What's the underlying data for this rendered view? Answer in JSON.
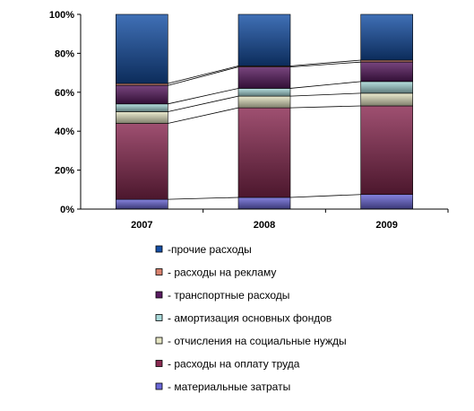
{
  "chart_data": {
    "type": "bar",
    "stacked": "percent",
    "categories": [
      "2007",
      "2008",
      "2009"
    ],
    "ylim": [
      0,
      100
    ],
    "y_ticks": [
      "0%",
      "20%",
      "40%",
      "60%",
      "80%",
      "100%"
    ],
    "grid": false,
    "legend_position": "bottom",
    "series": [
      {
        "name": "- материальные затраты",
        "color": "#6b68d8",
        "values": [
          5,
          6,
          7.5
        ]
      },
      {
        "name": " - расходы на оплату труда",
        "color": "#8a2a52",
        "values": [
          39,
          46,
          45.5
        ]
      },
      {
        "name": " - отчисления на социальные нужды",
        "color": "#e6e6c4",
        "values": [
          6,
          6,
          6.5
        ]
      },
      {
        "name": "- амортизация основных фондов",
        "color": "#a9dada",
        "values": [
          4,
          4,
          6
        ]
      },
      {
        "name": "- транспортные расходы",
        "color": "#5a1c62",
        "values": [
          9.5,
          11,
          10
        ]
      },
      {
        "name": "- расходы на рекламу",
        "color": "#d9826e",
        "values": [
          1,
          0.5,
          1
        ]
      },
      {
        "name": "-прочие расходы",
        "color": "#1650a6",
        "values": [
          35.5,
          26.5,
          23.5
        ]
      }
    ]
  }
}
